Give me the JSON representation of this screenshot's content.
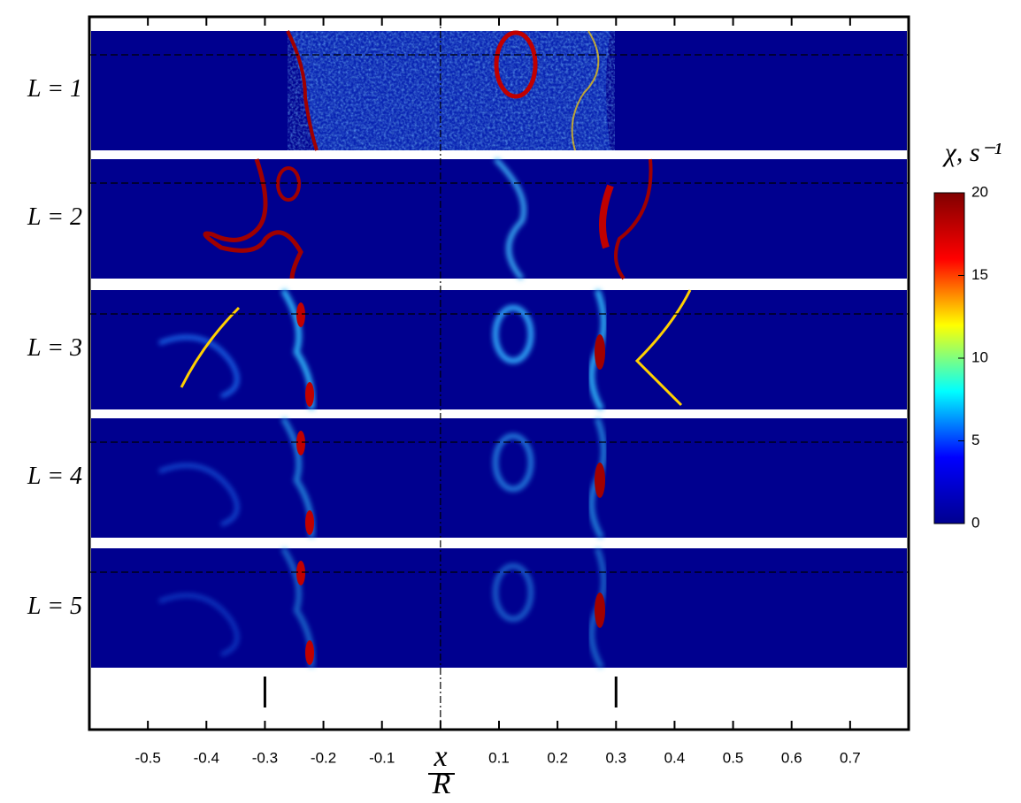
{
  "chart_data": {
    "type": "heatmap",
    "panels": [
      "L = 1",
      "L = 2",
      "L = 3",
      "L = 4",
      "L = 5"
    ],
    "xlabel_numerator": "x",
    "xlabel_denominator": "R",
    "xlim": [
      -0.6,
      0.8
    ],
    "xticks": [
      -0.5,
      -0.4,
      -0.3,
      -0.2,
      -0.1,
      0.1,
      0.2,
      0.3,
      0.4,
      0.5,
      0.6,
      0.7
    ],
    "colorbar_label": "χ, s⁻¹",
    "clim": [
      0,
      20
    ],
    "cticks": [
      0,
      5,
      10,
      15,
      20
    ],
    "colormap": [
      "#00008f",
      "#0000ff",
      "#00ffff",
      "#ffff00",
      "#ff0000",
      "#800000"
    ]
  }
}
